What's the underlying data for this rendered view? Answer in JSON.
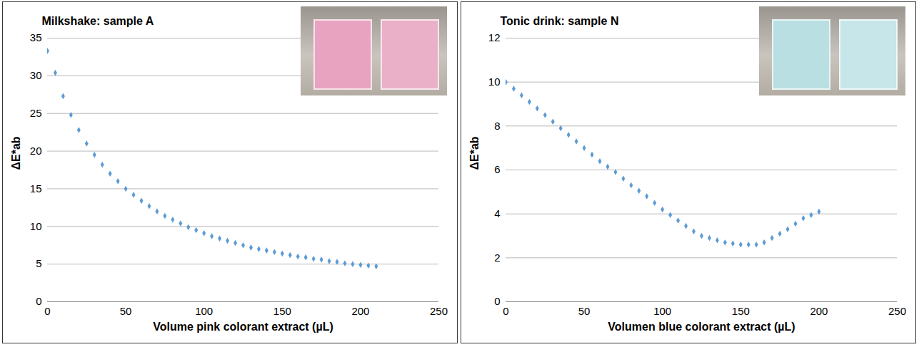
{
  "chart_data": [
    {
      "type": "scatter",
      "title": "Milkshake: sample A",
      "x_label": "Volume pink colorant extract (µL)",
      "y_label": "ΔE*ab",
      "x": [
        0,
        5,
        10,
        15,
        20,
        25,
        30,
        35,
        40,
        45,
        50,
        55,
        60,
        65,
        70,
        75,
        80,
        85,
        90,
        95,
        100,
        105,
        110,
        115,
        120,
        125,
        130,
        135,
        140,
        145,
        150,
        155,
        160,
        165,
        170,
        175,
        180,
        185,
        190,
        195,
        200,
        205,
        210
      ],
      "values": [
        33.3,
        30.4,
        27.3,
        24.8,
        22.8,
        21.0,
        19.5,
        18.2,
        17.0,
        16.0,
        15.0,
        14.2,
        13.4,
        12.7,
        12.0,
        11.4,
        10.9,
        10.4,
        9.9,
        9.5,
        9.1,
        8.7,
        8.4,
        8.1,
        7.8,
        7.5,
        7.2,
        7.0,
        6.8,
        6.6,
        6.4,
        6.2,
        6.0,
        5.9,
        5.7,
        5.6,
        5.4,
        5.3,
        5.1,
        5.0,
        4.9,
        4.8,
        4.7
      ],
      "color": "#5b9bd5",
      "marker": "diamond",
      "xlim": [
        0,
        250
      ],
      "xticks": [
        0,
        50,
        100,
        150,
        200,
        250
      ],
      "ylim": [
        0,
        35
      ],
      "yticks": [
        0,
        5,
        10,
        15,
        20,
        25,
        30,
        35
      ],
      "grid": true
    },
    {
      "type": "scatter",
      "title": "Tonic drink: sample N",
      "x_label": "Volumen blue colorant extract (µL)",
      "y_label": "ΔE*ab",
      "x": [
        0,
        5,
        10,
        15,
        20,
        25,
        30,
        35,
        40,
        45,
        50,
        55,
        60,
        65,
        70,
        75,
        80,
        85,
        90,
        95,
        100,
        105,
        110,
        115,
        120,
        125,
        130,
        135,
        140,
        145,
        150,
        155,
        160,
        165,
        170,
        175,
        180,
        185,
        190,
        195,
        200
      ],
      "values": [
        10.0,
        9.7,
        9.4,
        9.1,
        8.8,
        8.5,
        8.2,
        7.9,
        7.6,
        7.3,
        7.0,
        6.7,
        6.4,
        6.15,
        5.9,
        5.6,
        5.3,
        5.05,
        4.8,
        4.5,
        4.2,
        3.95,
        3.7,
        3.45,
        3.2,
        3.0,
        2.9,
        2.8,
        2.7,
        2.65,
        2.6,
        2.6,
        2.6,
        2.7,
        2.9,
        3.1,
        3.3,
        3.55,
        3.8,
        3.95,
        4.1
      ],
      "color": "#5b9bd5",
      "marker": "diamond",
      "xlim": [
        0,
        250
      ],
      "xticks": [
        0,
        50,
        100,
        150,
        200,
        250
      ],
      "ylim": [
        0,
        12
      ],
      "yticks": [
        0,
        2,
        4,
        6,
        8,
        10,
        12
      ],
      "grid": true
    }
  ]
}
